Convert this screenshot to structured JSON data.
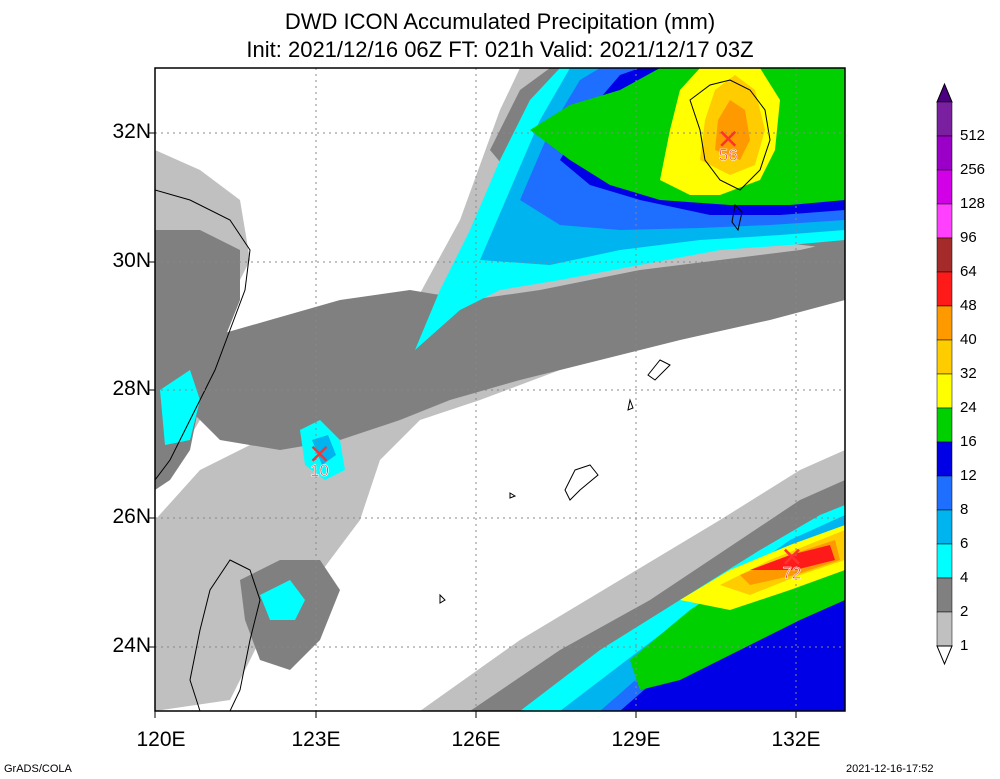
{
  "title": {
    "line1": "DWD ICON Accumulated Precipitation (mm)",
    "line2": "Init: 2021/12/16 06Z  FT: 021h  Valid: 2021/12/17 03Z"
  },
  "axes": {
    "lon_labels": [
      "120E",
      "123E",
      "126E",
      "129E",
      "132E"
    ],
    "lat_labels": [
      "32N",
      "30N",
      "28N",
      "26N",
      "24N"
    ],
    "lon_range": [
      120,
      133
    ],
    "lat_range": [
      23,
      33
    ]
  },
  "colorbar": {
    "levels": [
      "512",
      "256",
      "128",
      "96",
      "64",
      "48",
      "40",
      "32",
      "24",
      "16",
      "12",
      "8",
      "6",
      "4",
      "2",
      "1"
    ],
    "colors": [
      "#7a1fa0",
      "#9a00c8",
      "#d200e6",
      "#ff40ff",
      "#a52a2a",
      "#ff1a1a",
      "#ff9900",
      "#ffcc00",
      "#ffff00",
      "#00d000",
      "#0000e6",
      "#1e6eff",
      "#00b4f0",
      "#00ffff",
      "#808080",
      "#c0c0c0"
    ]
  },
  "maxima": [
    {
      "label": "56",
      "lon": 130.8,
      "lat": 31.9
    },
    {
      "label": "10",
      "lon": 123.1,
      "lat": 27.0
    },
    {
      "label": "72",
      "lon": 132.0,
      "lat": 25.4
    }
  ],
  "footer": {
    "left": "GrADS/COLA",
    "right": "2021-12-16-17:52"
  },
  "colors": {
    "marker": "#ff3030",
    "frame": "#000000"
  }
}
